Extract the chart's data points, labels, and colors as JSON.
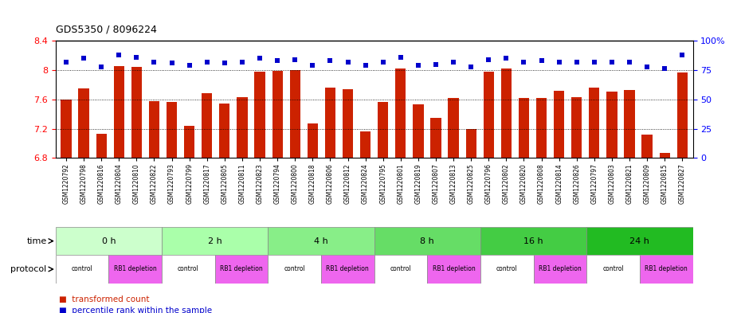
{
  "title": "GDS5350 / 8096224",
  "samples": [
    "GSM1220792",
    "GSM1220798",
    "GSM1220816",
    "GSM1220804",
    "GSM1220810",
    "GSM1220822",
    "GSM1220793",
    "GSM1220799",
    "GSM1220817",
    "GSM1220805",
    "GSM1220811",
    "GSM1220823",
    "GSM1220794",
    "GSM1220800",
    "GSM1220818",
    "GSM1220806",
    "GSM1220812",
    "GSM1220824",
    "GSM1220795",
    "GSM1220801",
    "GSM1220819",
    "GSM1220807",
    "GSM1220813",
    "GSM1220825",
    "GSM1220796",
    "GSM1220802",
    "GSM1220820",
    "GSM1220808",
    "GSM1220814",
    "GSM1220826",
    "GSM1220797",
    "GSM1220803",
    "GSM1220821",
    "GSM1220809",
    "GSM1220815",
    "GSM1220827"
  ],
  "bar_values": [
    7.6,
    7.75,
    7.13,
    8.05,
    8.04,
    7.58,
    7.57,
    7.24,
    7.68,
    7.54,
    7.63,
    7.98,
    7.99,
    8.0,
    7.27,
    7.76,
    7.74,
    7.16,
    7.57,
    8.02,
    7.53,
    7.35,
    7.62,
    7.2,
    7.98,
    8.02,
    7.62,
    7.62,
    7.72,
    7.63,
    7.76,
    7.71,
    7.73,
    7.12,
    6.87,
    7.97
  ],
  "percentile_values": [
    82,
    85,
    78,
    88,
    86,
    82,
    81,
    79,
    82,
    81,
    82,
    85,
    83,
    84,
    79,
    83,
    82,
    79,
    82,
    86,
    79,
    80,
    82,
    78,
    84,
    85,
    82,
    83,
    82,
    82,
    82,
    82,
    82,
    78,
    76,
    88
  ],
  "time_colors": [
    "#ccffcc",
    "#aaffaa",
    "#88ee88",
    "#66dd66",
    "#44cc44",
    "#22bb22"
  ],
  "time_labels": [
    "0 h",
    "2 h",
    "4 h",
    "8 h",
    "16 h",
    "24 h"
  ],
  "time_starts": [
    0,
    6,
    12,
    18,
    24,
    30
  ],
  "time_ends": [
    6,
    12,
    18,
    24,
    30,
    36
  ],
  "protocol_labels": [
    "control",
    "RB1 depletion",
    "control",
    "RB1 depletion",
    "control",
    "RB1 depletion",
    "control",
    "RB1 depletion",
    "control",
    "RB1 depletion",
    "control",
    "RB1 depletion"
  ],
  "protocol_starts": [
    0,
    3,
    6,
    9,
    12,
    15,
    18,
    21,
    24,
    27,
    30,
    33
  ],
  "protocol_ends": [
    3,
    6,
    9,
    12,
    15,
    18,
    21,
    24,
    27,
    30,
    33,
    36
  ],
  "protocol_control_color": "#ffffff",
  "protocol_depletion_color": "#ee66ee",
  "ylim_left": [
    6.8,
    8.4
  ],
  "ylim_right": [
    0,
    100
  ],
  "yticks_left": [
    6.8,
    7.2,
    7.6,
    8.0,
    8.4
  ],
  "yticks_right": [
    0,
    25,
    50,
    75,
    100
  ],
  "bar_color": "#cc2200",
  "dot_color": "#0000cc",
  "bg_color": "#ffffff"
}
